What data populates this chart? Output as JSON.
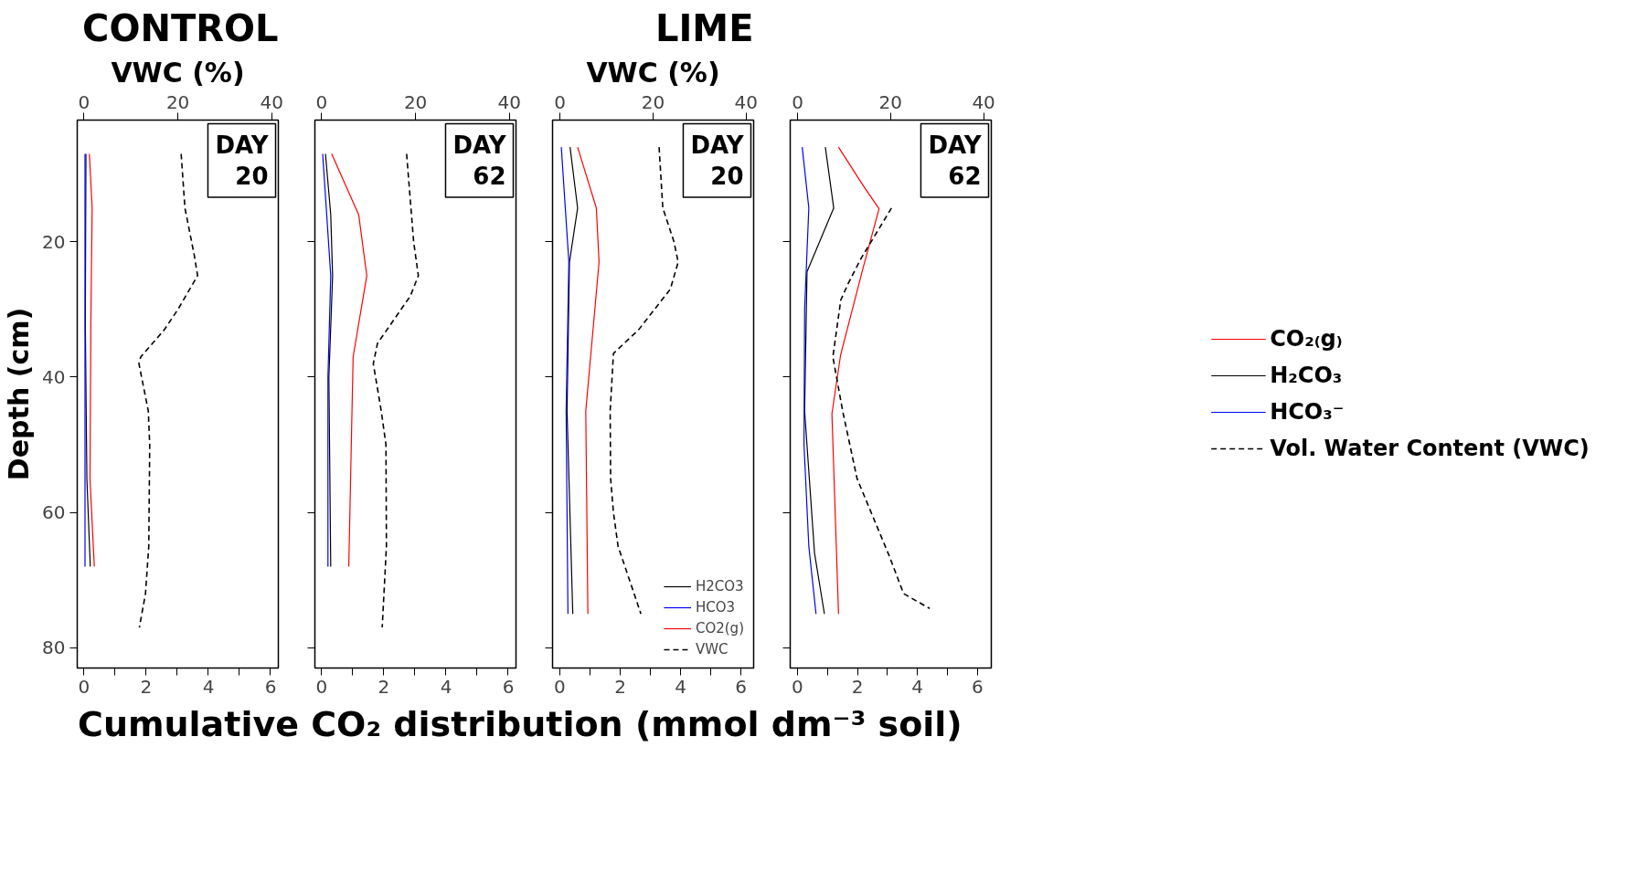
{
  "chart_data": [
    {
      "type": "line",
      "orientation": "horizontal",
      "title": "CONTROL",
      "x2label": "VWC (%)",
      "ylabel": "Depth (cm)",
      "xlabel": "Cumulative CO₂ distribution (mmol dm⁻³ soil)",
      "xlim": [
        -0.22,
        6.25
      ],
      "xticks": [
        0,
        {
          "value": 1,
          "label": null
        },
        2,
        {
          "value": 3,
          "label": null
        },
        4,
        {
          "value": 5,
          "label": null
        },
        6
      ],
      "x2lim": [
        -1.44,
        41.4
      ],
      "x2ticks": [
        0,
        20,
        40
      ],
      "ylim": [
        83,
        2
      ],
      "yticks": [
        20,
        40,
        60,
        80
      ],
      "annotations": [
        "DAY\n20"
      ],
      "series": [
        {
          "color": "#ff0000",
          "x": [
            7,
            15,
            31,
            55,
            68
          ],
          "values": [
            0.17,
            0.26,
            0.22,
            0.19,
            0.33
          ]
        },
        {
          "color": "#000000",
          "x": [
            7,
            32,
            55,
            68
          ],
          "values": [
            0.06,
            0.04,
            0.09,
            0.2
          ]
        },
        {
          "color": "#0000ff",
          "x": [
            7,
            68
          ],
          "values": [
            0.03,
            0.03
          ]
        },
        {
          "color": "#000000",
          "axis": "x2",
          "line_style": "dashed",
          "x": [
            7,
            15,
            22,
            25,
            30,
            33,
            37,
            38,
            45,
            50,
            65,
            72,
            77
          ],
          "values": [
            20.7,
            21.5,
            23.5,
            24.2,
            20,
            17.1,
            12.1,
            11.7,
            13.7,
            14,
            13.8,
            13.1,
            11.8
          ]
        }
      ]
    },
    {
      "type": "line",
      "orientation": "horizontal",
      "tick_labels": "x",
      "xlim": [
        -0.22,
        6.25
      ],
      "xticks": [
        0,
        {
          "value": 1,
          "label": null
        },
        2,
        {
          "value": 3,
          "label": null
        },
        4,
        {
          "value": 5,
          "label": null
        },
        6
      ],
      "x2lim": [
        -1.44,
        41.4
      ],
      "x2ticks": [
        0,
        20,
        40
      ],
      "ylim": [
        83,
        2
      ],
      "yticks": [
        20,
        40,
        60,
        80
      ],
      "annotations": [
        "DAY\n62"
      ],
      "series": [
        {
          "color": "#ff0000",
          "x": [
            7,
            16,
            25,
            37,
            68
          ],
          "values": [
            0.32,
            1.19,
            1.45,
            1.01,
            0.87
          ]
        },
        {
          "color": "#000000",
          "x": [
            7,
            16,
            25,
            40,
            68
          ],
          "values": [
            0.12,
            0.29,
            0.35,
            0.23,
            0.29
          ]
        },
        {
          "color": "#0000ff",
          "x": [
            7,
            25,
            40,
            68
          ],
          "values": [
            0.03,
            0.29,
            0.2,
            0.2
          ]
        },
        {
          "color": "#000000",
          "axis": "x2",
          "line_style": "dashed",
          "x": [
            7,
            20,
            25,
            28,
            35,
            38,
            45,
            50,
            65,
            77
          ],
          "values": [
            18.1,
            19.6,
            20.6,
            18.9,
            11.9,
            11,
            12.7,
            13.7,
            13.8,
            12.9
          ]
        }
      ]
    },
    {
      "type": "line",
      "orientation": "horizontal",
      "title": "LIME",
      "x2label": "VWC (%)",
      "tick_labels": "x",
      "legend": "bottom right",
      "xlim": [
        -0.24,
        6.42
      ],
      "xticks": [
        0,
        {
          "value": 1,
          "label": null
        },
        2,
        {
          "value": 3,
          "label": null
        },
        4,
        {
          "value": 5,
          "label": null
        },
        6
      ],
      "x2lim": [
        -1.57,
        41.6
      ],
      "x2ticks": [
        0,
        20,
        40
      ],
      "ylim": [
        83,
        2
      ],
      "yticks": [
        20,
        40,
        60,
        80
      ],
      "annotations": [
        "DAY\n20"
      ],
      "series": [
        {
          "name": "H2CO3",
          "color": "#000000",
          "x": [
            6,
            15,
            23,
            45,
            75
          ],
          "values": [
            0.34,
            0.59,
            0.32,
            0.24,
            0.43
          ]
        },
        {
          "name": "HCO3",
          "color": "#0000ff",
          "x": [
            6,
            23,
            45,
            75
          ],
          "values": [
            0.05,
            0.3,
            0.21,
            0.27
          ]
        },
        {
          "name": "CO2(g)",
          "color": "#ff0000",
          "x": [
            6,
            15,
            23,
            45,
            75
          ],
          "values": [
            0.59,
            1.21,
            1.3,
            0.86,
            0.93
          ]
        },
        {
          "name": "VWC",
          "color": "#000000",
          "axis": "x2",
          "line_style": "dashed",
          "x": [
            6,
            15,
            20,
            23,
            27,
            33,
            36.5,
            45,
            55,
            60,
            65,
            75
          ],
          "values": [
            21.3,
            22.1,
            24.5,
            25.4,
            23.7,
            16.9,
            11.5,
            10.8,
            10.9,
            11.5,
            12.5,
            17.4
          ]
        }
      ]
    },
    {
      "type": "line",
      "orientation": "horizontal",
      "tick_labels": "x",
      "legend": "right",
      "xlim": [
        -0.24,
        6.46
      ],
      "xticks": [
        0,
        {
          "value": 1,
          "label": null
        },
        2,
        {
          "value": 3,
          "label": null
        },
        4,
        {
          "value": 5,
          "label": null
        },
        6
      ],
      "x2lim": [
        -1.57,
        41.65
      ],
      "x2ticks": [
        0,
        20,
        40
      ],
      "ylim": [
        83,
        2
      ],
      "yticks": [
        20,
        40,
        60,
        80
      ],
      "annotations": [
        "DAY\n62"
      ],
      "series": [
        {
          "name": "CO₂₍g₎",
          "color": "#ff0000",
          "x": [
            6,
            11.8,
            15.1,
            24,
            36.7,
            45.4,
            75
          ],
          "values": [
            1.37,
            2.21,
            2.72,
            2.18,
            1.44,
            1.15,
            1.37
          ]
        },
        {
          "name": "H₂CO₃",
          "color": "#000000",
          "x": [
            6,
            15,
            24.4,
            45,
            66,
            75
          ],
          "values": [
            0.93,
            1.21,
            0.32,
            0.24,
            0.57,
            0.9
          ]
        },
        {
          "name": "HCO₃⁻",
          "color": "#0000ff",
          "x": [
            6,
            15,
            30,
            50,
            65,
            75
          ],
          "values": [
            0.16,
            0.38,
            0.24,
            0.22,
            0.38,
            0.62
          ]
        },
        {
          "name": "Vol. Water Content (VWC)",
          "color": "#000000",
          "axis": "x2",
          "line_style": "dashed",
          "x": [
            15,
            22.4,
            26,
            28.6,
            37,
            45,
            55,
            66.4,
            72,
            74.2
          ],
          "values": [
            20.2,
            13.7,
            11,
            9.3,
            7.6,
            9.7,
            12.8,
            19.7,
            22.8,
            28.4
          ]
        }
      ]
    }
  ]
}
